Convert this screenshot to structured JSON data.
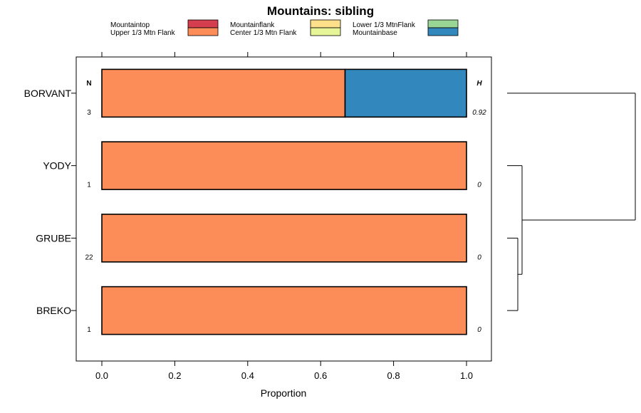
{
  "chart_data": {
    "type": "bar",
    "orientation": "horizontal",
    "stacked": true,
    "title": "Mountains: sibling",
    "xlabel": "Proportion",
    "ylabel": "",
    "xlim": [
      0,
      1
    ],
    "xticks": [
      "0.0",
      "0.2",
      "0.4",
      "0.6",
      "0.8",
      "1.0"
    ],
    "categories": [
      "BORVANT",
      "YODY",
      "GRUBE",
      "BREKO"
    ],
    "legend": [
      {
        "name": "Mountaintop",
        "color": "#d53e4f"
      },
      {
        "name": "Upper 1/3 Mtn Flank",
        "color": "#fc8d59"
      },
      {
        "name": "Mountainflank",
        "color": "#fee08b"
      },
      {
        "name": "Center 1/3 Mtn Flank",
        "color": "#e6f598"
      },
      {
        "name": "Lower 1/3 MtnFlank",
        "color": "#99d594"
      },
      {
        "name": "Mountainbase",
        "color": "#3288bd"
      }
    ],
    "series": [
      {
        "name": "Mountaintop",
        "values": [
          0,
          0,
          0,
          0
        ]
      },
      {
        "name": "Upper 1/3 Mtn Flank",
        "values": [
          0.667,
          1,
          1,
          1
        ]
      },
      {
        "name": "Mountainflank",
        "values": [
          0,
          0,
          0,
          0
        ]
      },
      {
        "name": "Center 1/3 Mtn Flank",
        "values": [
          0,
          0,
          0,
          0
        ]
      },
      {
        "name": "Lower 1/3 MtnFlank",
        "values": [
          0,
          0,
          0,
          0
        ]
      },
      {
        "name": "Mountainbase",
        "values": [
          0.333,
          0,
          0,
          0
        ]
      }
    ],
    "n_header": "N",
    "h_header": "H",
    "n_values": [
      "3",
      "1",
      "22",
      "1"
    ],
    "h_values": [
      "0.92",
      "0",
      "0",
      "0"
    ],
    "dendrogram": true
  }
}
